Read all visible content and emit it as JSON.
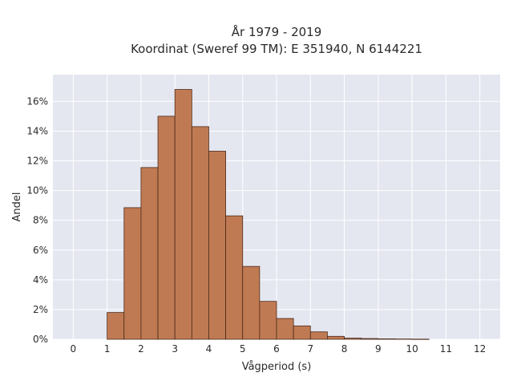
{
  "chart_data": {
    "type": "bar",
    "title_lines": [
      "År 1979 - 2019",
      "Koordinat (Sweref 99 TM): E 351940, N 6144221"
    ],
    "xlabel": "Vågperiod (s)",
    "ylabel": "Andel",
    "xlim": [
      -0.6,
      12.6
    ],
    "ylim": [
      0,
      17.8
    ],
    "x_ticks": [
      0,
      1,
      2,
      3,
      4,
      5,
      6,
      7,
      8,
      9,
      10,
      11,
      12
    ],
    "x_tick_labels": [
      "0",
      "1",
      "2",
      "3",
      "4",
      "5",
      "6",
      "7",
      "8",
      "9",
      "10",
      "11",
      "12"
    ],
    "y_ticks": [
      0,
      2,
      4,
      6,
      8,
      10,
      12,
      14,
      16
    ],
    "y_tick_labels": [
      "0%",
      "2%",
      "4%",
      "6%",
      "8%",
      "10%",
      "12%",
      "14%",
      "16%"
    ],
    "bin_width": 0.5,
    "bins": [
      {
        "start": 1.0,
        "value": 1.8
      },
      {
        "start": 1.5,
        "value": 8.85
      },
      {
        "start": 2.0,
        "value": 11.55
      },
      {
        "start": 2.5,
        "value": 15.0
      },
      {
        "start": 3.0,
        "value": 16.8
      },
      {
        "start": 3.5,
        "value": 14.3
      },
      {
        "start": 4.0,
        "value": 12.65
      },
      {
        "start": 4.5,
        "value": 8.3
      },
      {
        "start": 5.0,
        "value": 4.9
      },
      {
        "start": 5.5,
        "value": 2.55
      },
      {
        "start": 6.0,
        "value": 1.4
      },
      {
        "start": 6.5,
        "value": 0.9
      },
      {
        "start": 7.0,
        "value": 0.5
      },
      {
        "start": 7.5,
        "value": 0.2
      },
      {
        "start": 8.0,
        "value": 0.08
      },
      {
        "start": 8.5,
        "value": 0.05
      },
      {
        "start": 9.0,
        "value": 0.03
      },
      {
        "start": 9.5,
        "value": 0.02
      },
      {
        "start": 10.0,
        "value": 0.01
      }
    ],
    "grid": true,
    "colors": {
      "bar_fill": "#c07a53",
      "bar_stroke": "#4a2a1a",
      "plot_bg": "#e5e7f0",
      "grid": "#ffffff"
    }
  }
}
